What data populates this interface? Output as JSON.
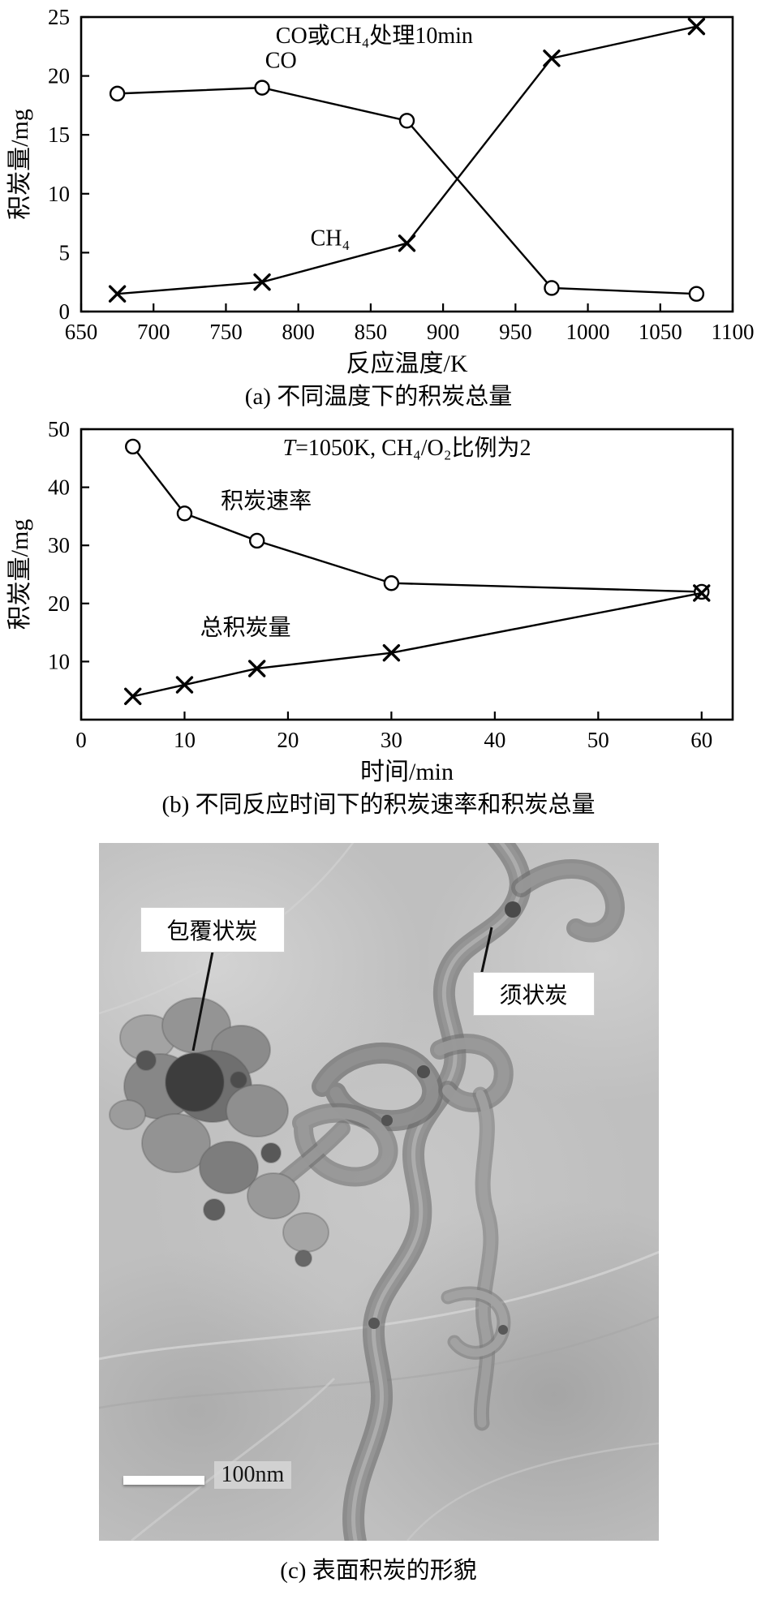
{
  "figure": {
    "background": "#ffffff",
    "ink": "#000000"
  },
  "chart_data": [
    {
      "type": "line",
      "panel": "a",
      "inner_title_parts": [
        {
          "text": "CO或CH₄处理10min",
          "italic": false
        }
      ],
      "xlabel": "反应温度/K",
      "ylabel": "积炭量/mg",
      "xlim": [
        650,
        1100
      ],
      "ylim": [
        0,
        25
      ],
      "xticks": [
        650,
        700,
        750,
        800,
        850,
        900,
        950,
        1000,
        1050,
        1100
      ],
      "yticks": [
        0,
        5,
        10,
        15,
        20,
        25
      ],
      "grid": false,
      "legend_position": "inline-labels",
      "series": [
        {
          "name": "CO",
          "marker": "circle",
          "x": [
            675,
            775,
            875,
            975,
            1075
          ],
          "y": [
            18.5,
            19.0,
            16.2,
            2.0,
            1.5
          ],
          "label": "CO",
          "label_at": [
            788,
            20.7
          ],
          "label_anchor": "middle"
        },
        {
          "name": "CH₄",
          "marker": "x",
          "x": [
            675,
            775,
            875,
            975,
            1075
          ],
          "y": [
            1.5,
            2.5,
            5.8,
            21.5,
            24.2
          ],
          "label": "CH₄",
          "label_at": [
            822,
            5.6
          ],
          "label_anchor": "middle"
        }
      ],
      "caption": "(a) 不同温度下的积炭总量"
    },
    {
      "type": "line",
      "panel": "b",
      "inner_title_parts": [
        {
          "text": "T",
          "italic": true
        },
        {
          "text": "=1050K, CH₄/O₂比例为2",
          "italic": false
        }
      ],
      "xlabel": "时间/min",
      "ylabel": "积炭量/mg",
      "xlim": [
        0,
        63
      ],
      "ylim": [
        0,
        50
      ],
      "xticks": [
        0,
        10,
        20,
        30,
        40,
        50,
        60
      ],
      "yticks": [
        10,
        20,
        30,
        40,
        50
      ],
      "grid": false,
      "legend_position": "inline-labels",
      "series": [
        {
          "name": "积炭速率",
          "marker": "circle",
          "x": [
            5,
            10,
            17,
            30,
            60
          ],
          "y": [
            47.0,
            35.5,
            30.8,
            23.5,
            22.0
          ],
          "label": "积炭速率",
          "label_at": [
            13.5,
            36.4
          ],
          "label_anchor": "start"
        },
        {
          "name": "总积炭量",
          "marker": "x",
          "x": [
            5,
            10,
            17,
            30,
            60
          ],
          "y": [
            4.0,
            6.0,
            8.8,
            11.5,
            21.8
          ],
          "label": "总积炭量",
          "label_at": [
            11.5,
            14.6
          ],
          "label_anchor": "start"
        }
      ],
      "caption": "(b) 不同反应时间下的积炭速率和积炭总量"
    }
  ],
  "tem": {
    "labels": [
      {
        "id": "coating",
        "text": "包覆状炭"
      },
      {
        "id": "whisker",
        "text": "须状炭"
      }
    ],
    "scale_bar_label": "100nm",
    "caption": "(c) 表面积炭的形貌"
  }
}
